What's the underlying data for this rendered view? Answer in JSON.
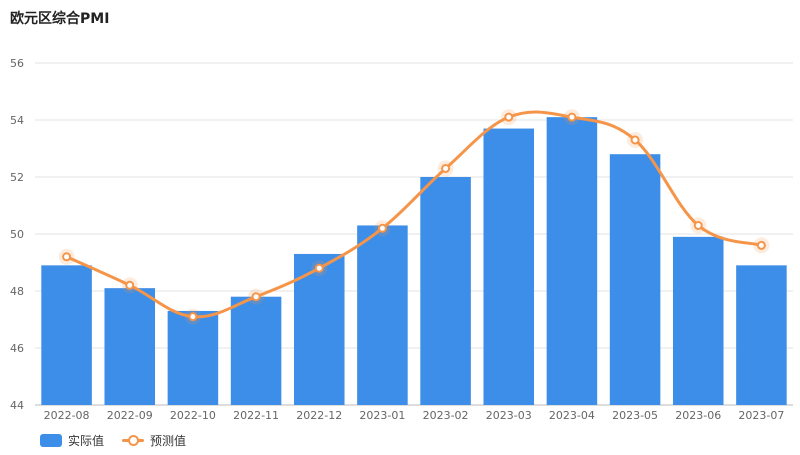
{
  "chart_data": {
    "type": "bar",
    "title": "欧元区综合PMI",
    "categories": [
      "2022-08",
      "2022-09",
      "2022-10",
      "2022-11",
      "2022-12",
      "2023-01",
      "2023-02",
      "2023-03",
      "2023-04",
      "2023-05",
      "2023-06",
      "2023-07"
    ],
    "series": [
      {
        "name": "实际值",
        "type": "bar",
        "color": "#3d8ee8",
        "values": [
          48.9,
          48.1,
          47.3,
          47.8,
          49.3,
          50.3,
          52.0,
          53.7,
          54.1,
          52.8,
          49.9,
          48.9
        ]
      },
      {
        "name": "预测值",
        "type": "line",
        "color": "#f5954a",
        "values": [
          49.2,
          48.2,
          47.1,
          47.8,
          48.8,
          50.2,
          52.3,
          54.1,
          54.1,
          53.3,
          50.3,
          49.6
        ]
      }
    ],
    "ylim": [
      44,
      56
    ],
    "yticks": [
      44,
      46,
      48,
      50,
      52,
      54,
      56
    ],
    "xlabel": "",
    "ylabel": "",
    "grid": true,
    "legend": "bottom-left"
  }
}
